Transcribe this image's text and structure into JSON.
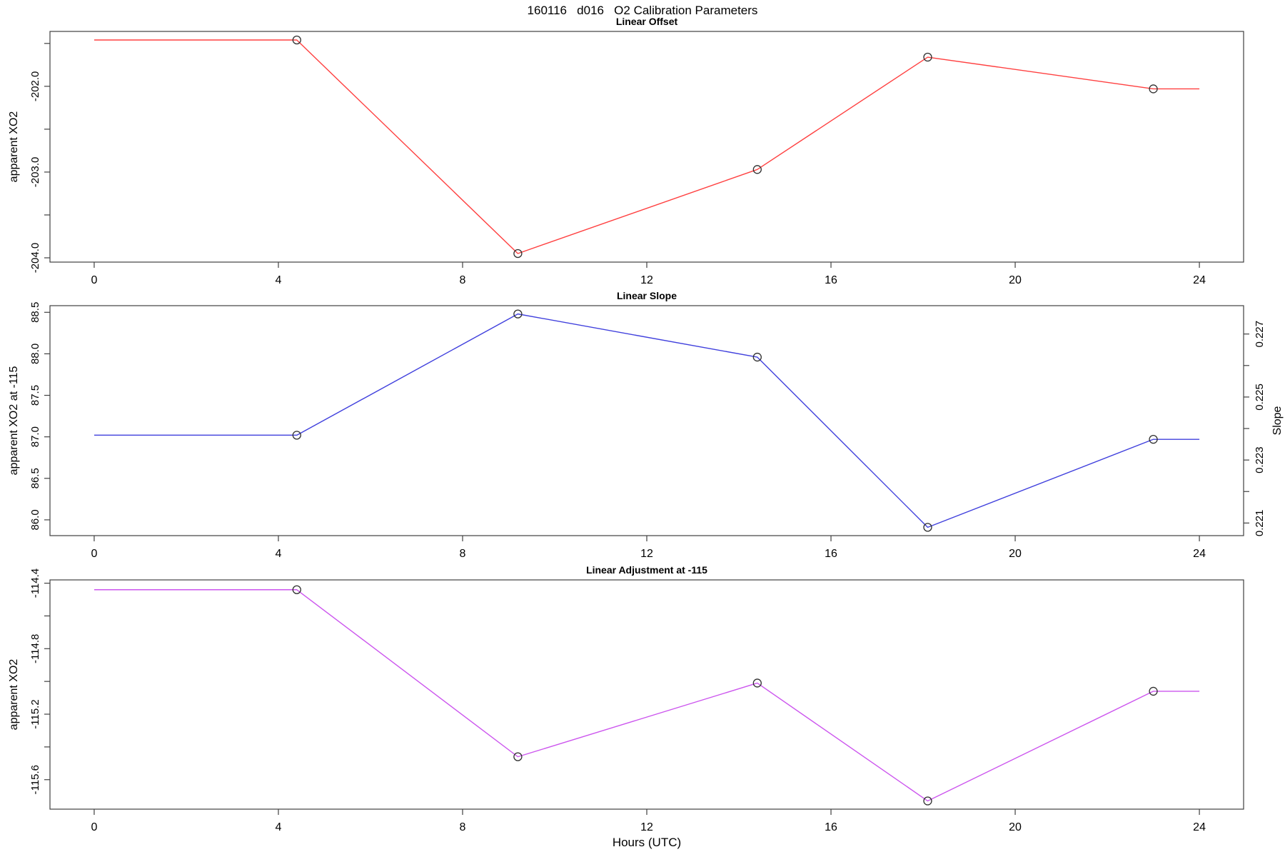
{
  "figure": {
    "title": "160116   d016   O2 Calibration Parameters",
    "xlabel": "Hours (UTC)",
    "background": "#ffffff",
    "frame_color": "#404040",
    "marker_color": "#303030"
  },
  "chart_data": [
    {
      "type": "line",
      "title": "Linear Offset",
      "color": "#ff4040",
      "ylabel": "apparent XO2",
      "x": [
        0,
        4.4,
        9.2,
        14.4,
        18.1,
        23.0,
        24.0
      ],
      "y": [
        -201.46,
        -201.46,
        -203.95,
        -202.97,
        -201.66,
        -202.03,
        -202.03
      ],
      "marker_indices": [
        1,
        2,
        3,
        4,
        5
      ],
      "xlim": [
        -0.96,
        24.96
      ],
      "ylim": [
        -204.05,
        -201.36
      ],
      "xticks": [
        {
          "v": 0,
          "t": "0"
        },
        {
          "v": 4,
          "t": "4"
        },
        {
          "v": 8,
          "t": "8"
        },
        {
          "v": 12,
          "t": "12"
        },
        {
          "v": 16,
          "t": "16"
        },
        {
          "v": 20,
          "t": "20"
        },
        {
          "v": 24,
          "t": "24"
        }
      ],
      "yticks": [
        {
          "v": -204.0,
          "t": "-204.0"
        },
        {
          "v": -203.5,
          "t": ""
        },
        {
          "v": -203.0,
          "t": "-203.0"
        },
        {
          "v": -202.5,
          "t": ""
        },
        {
          "v": -202.0,
          "t": "-202.0"
        },
        {
          "v": -201.5,
          "t": ""
        }
      ]
    },
    {
      "type": "line",
      "title": "Linear Slope",
      "color": "#4040dd",
      "ylabel": "apparent XO2 at -115",
      "ylabel_right": "Slope",
      "x": [
        0,
        4.4,
        9.2,
        14.4,
        18.1,
        23.0,
        24.0
      ],
      "y": [
        87.02,
        87.02,
        88.48,
        87.96,
        85.91,
        86.97,
        86.97
      ],
      "marker_indices": [
        1,
        2,
        3,
        4,
        5
      ],
      "xlim": [
        -0.96,
        24.96
      ],
      "ylim": [
        85.81,
        88.58
      ],
      "ylim_right": [
        0.2206,
        0.2279
      ],
      "xticks": [
        {
          "v": 0,
          "t": "0"
        },
        {
          "v": 4,
          "t": "4"
        },
        {
          "v": 8,
          "t": "8"
        },
        {
          "v": 12,
          "t": "12"
        },
        {
          "v": 16,
          "t": "16"
        },
        {
          "v": 20,
          "t": "20"
        },
        {
          "v": 24,
          "t": "24"
        }
      ],
      "yticks": [
        {
          "v": 86.0,
          "t": "86.0"
        },
        {
          "v": 86.5,
          "t": "86.5"
        },
        {
          "v": 87.0,
          "t": "87.0"
        },
        {
          "v": 87.5,
          "t": "87.5"
        },
        {
          "v": 88.0,
          "t": "88.0"
        },
        {
          "v": 88.5,
          "t": "88.5"
        }
      ],
      "yticks_right": [
        {
          "v": 0.221,
          "t": "0.221"
        },
        {
          "v": 0.222,
          "t": ""
        },
        {
          "v": 0.223,
          "t": "0.223"
        },
        {
          "v": 0.224,
          "t": ""
        },
        {
          "v": 0.225,
          "t": "0.225"
        },
        {
          "v": 0.226,
          "t": ""
        },
        {
          "v": 0.227,
          "t": "0.227"
        }
      ]
    },
    {
      "type": "line",
      "title": "Linear Adjustment at -115",
      "color": "#cc55ee",
      "ylabel": "apparent XO2",
      "x": [
        0,
        4.4,
        9.2,
        14.4,
        18.1,
        23.0,
        24.0
      ],
      "y": [
        -114.44,
        -114.44,
        -115.46,
        -115.01,
        -115.73,
        -115.06,
        -115.06
      ],
      "marker_indices": [
        1,
        2,
        3,
        4,
        5
      ],
      "xlim": [
        -0.96,
        24.96
      ],
      "ylim": [
        -115.78,
        -114.38
      ],
      "xticks": [
        {
          "v": 0,
          "t": "0"
        },
        {
          "v": 4,
          "t": "4"
        },
        {
          "v": 8,
          "t": "8"
        },
        {
          "v": 12,
          "t": "12"
        },
        {
          "v": 16,
          "t": "16"
        },
        {
          "v": 20,
          "t": "20"
        },
        {
          "v": 24,
          "t": "24"
        }
      ],
      "yticks": [
        {
          "v": -115.6,
          "t": "-115.6"
        },
        {
          "v": -115.4,
          "t": ""
        },
        {
          "v": -115.2,
          "t": "-115.2"
        },
        {
          "v": -115.0,
          "t": ""
        },
        {
          "v": -114.8,
          "t": "-114.8"
        },
        {
          "v": -114.6,
          "t": ""
        },
        {
          "v": -114.4,
          "t": "-114.4"
        }
      ]
    }
  ]
}
